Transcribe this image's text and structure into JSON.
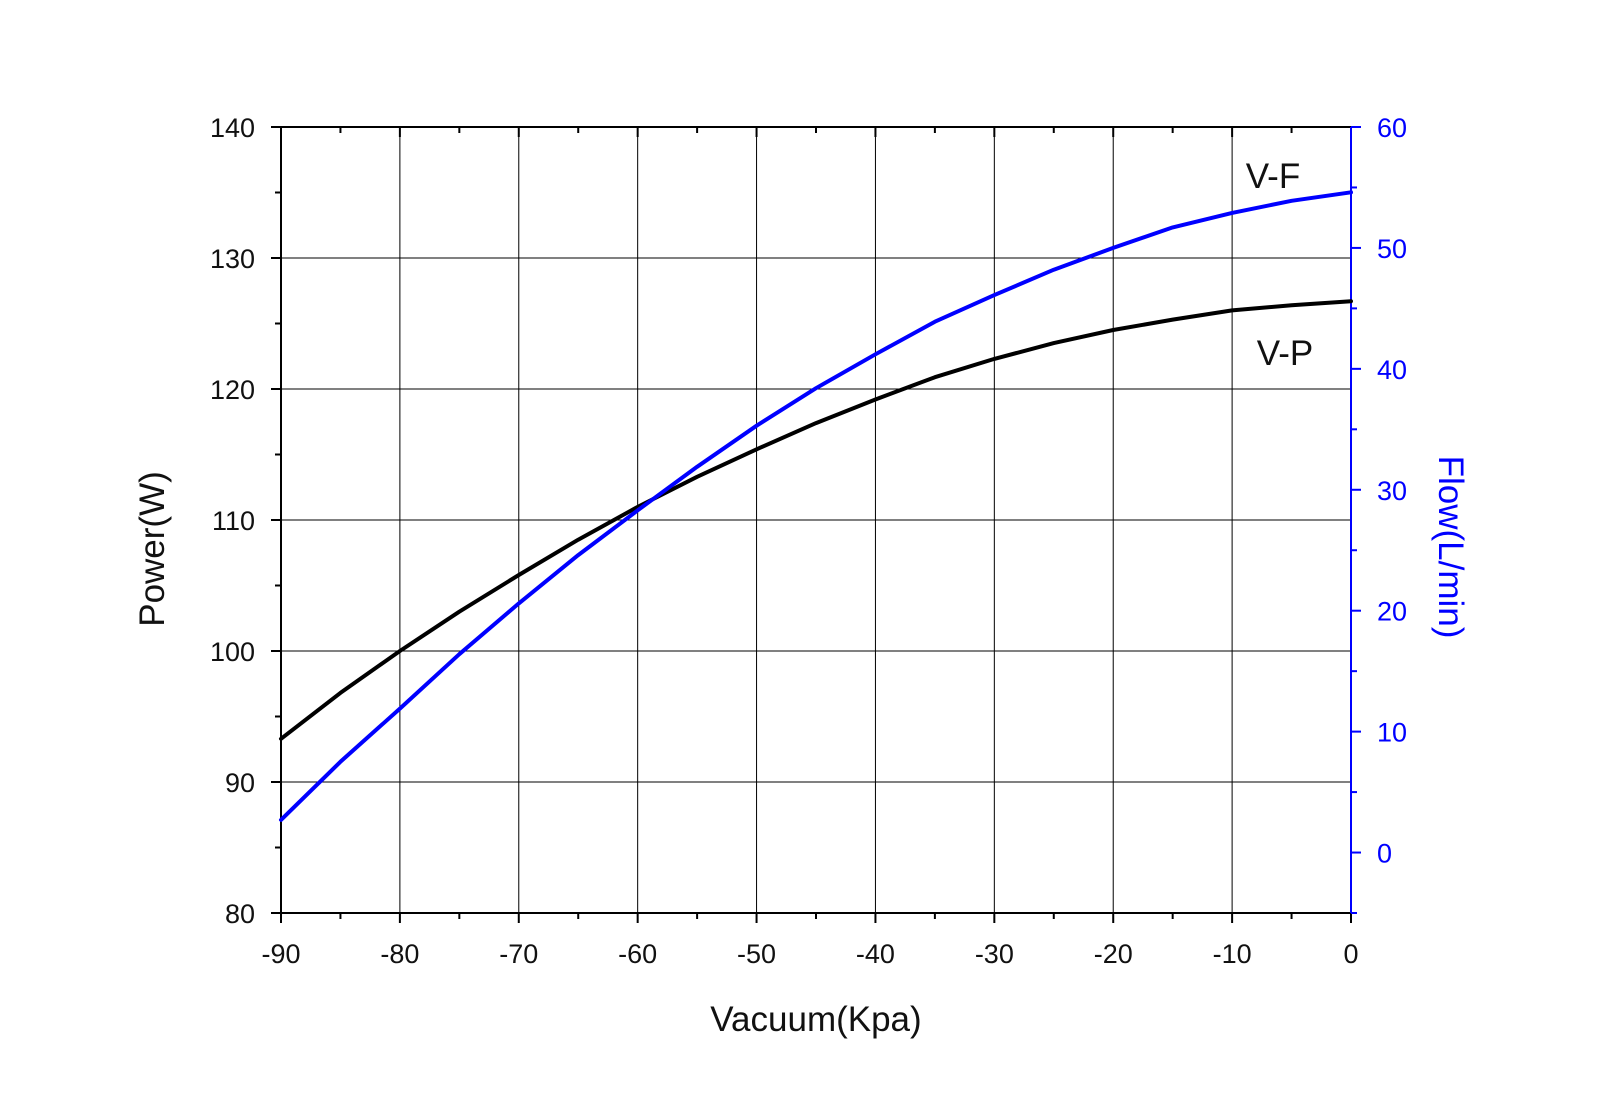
{
  "chart_data": {
    "type": "line",
    "title": "",
    "xlabel": "Vacuum(Kpa)",
    "ylabel": "Power(W)",
    "y2label": "Flow(L/min)",
    "xlim": [
      -90,
      0
    ],
    "ylim": [
      80,
      140
    ],
    "y2lim": [
      -5,
      60
    ],
    "x_ticks": [
      -90,
      -80,
      -70,
      -60,
      -50,
      -40,
      -30,
      -20,
      -10,
      0
    ],
    "y_ticks": [
      80,
      90,
      100,
      110,
      120,
      130,
      140
    ],
    "y2_ticks": [
      0,
      10,
      20,
      30,
      40,
      50,
      60
    ],
    "grid": true,
    "colors": {
      "power": "#000000",
      "flow": "#0000ff",
      "axis": "#000000",
      "right_axis": "#0000ff",
      "grid": "#000000"
    },
    "series": [
      {
        "name": "V-P",
        "axis": "left",
        "x": [
          -90,
          -85,
          -80,
          -75,
          -70,
          -65,
          -60,
          -55,
          -50,
          -45,
          -40,
          -35,
          -30,
          -25,
          -20,
          -15,
          -10,
          -5,
          0
        ],
        "values": [
          93.3,
          96.8,
          100.0,
          103.0,
          105.8,
          108.5,
          111.0,
          113.3,
          115.4,
          117.4,
          119.2,
          120.9,
          122.3,
          123.5,
          124.5,
          125.3,
          126.0,
          126.4,
          126.7
        ]
      },
      {
        "name": "V-F",
        "axis": "right",
        "x": [
          -90,
          -85,
          -80,
          -75,
          -70,
          -65,
          -60,
          -55,
          -50,
          -45,
          -40,
          -35,
          -30,
          -25,
          -20,
          -15,
          -10,
          -5,
          0
        ],
        "values": [
          2.7,
          7.5,
          11.9,
          16.4,
          20.6,
          24.6,
          28.3,
          31.9,
          35.3,
          38.4,
          41.2,
          43.9,
          46.1,
          48.2,
          50.0,
          51.7,
          52.9,
          53.9,
          54.6
        ]
      }
    ],
    "series_labels": {
      "flow": "V-F",
      "power": "V-P"
    }
  }
}
